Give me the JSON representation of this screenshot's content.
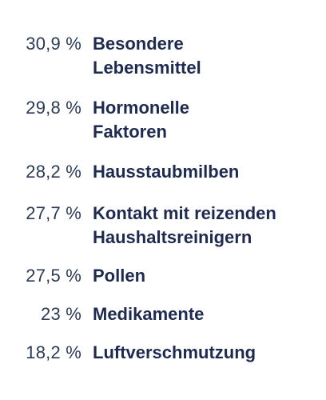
{
  "colors": {
    "background": "#ffffff",
    "percent_text": "#2b3a55",
    "label_text": "#1e2a4f"
  },
  "chart_data": {
    "type": "table",
    "rows": [
      {
        "percent": "30,9 %",
        "label": "Besondere\nLebensmittel",
        "value": 30.9
      },
      {
        "percent": "29,8 %",
        "label": "Hormonelle\nFaktoren",
        "value": 29.8
      },
      {
        "percent": "28,2 %",
        "label": "Hausstaubmilben",
        "value": 28.2
      },
      {
        "percent": "27,7 %",
        "label": "Kontakt mit reizenden\nHaushaltsreinigern",
        "value": 27.7
      },
      {
        "percent": "27,5 %",
        "label": "Pollen",
        "value": 27.5
      },
      {
        "percent": "23 %",
        "label": "Medikamente",
        "value": 23
      },
      {
        "percent": "18,2 %",
        "label": "Luftverschmutzung",
        "value": 18.2
      }
    ]
  }
}
